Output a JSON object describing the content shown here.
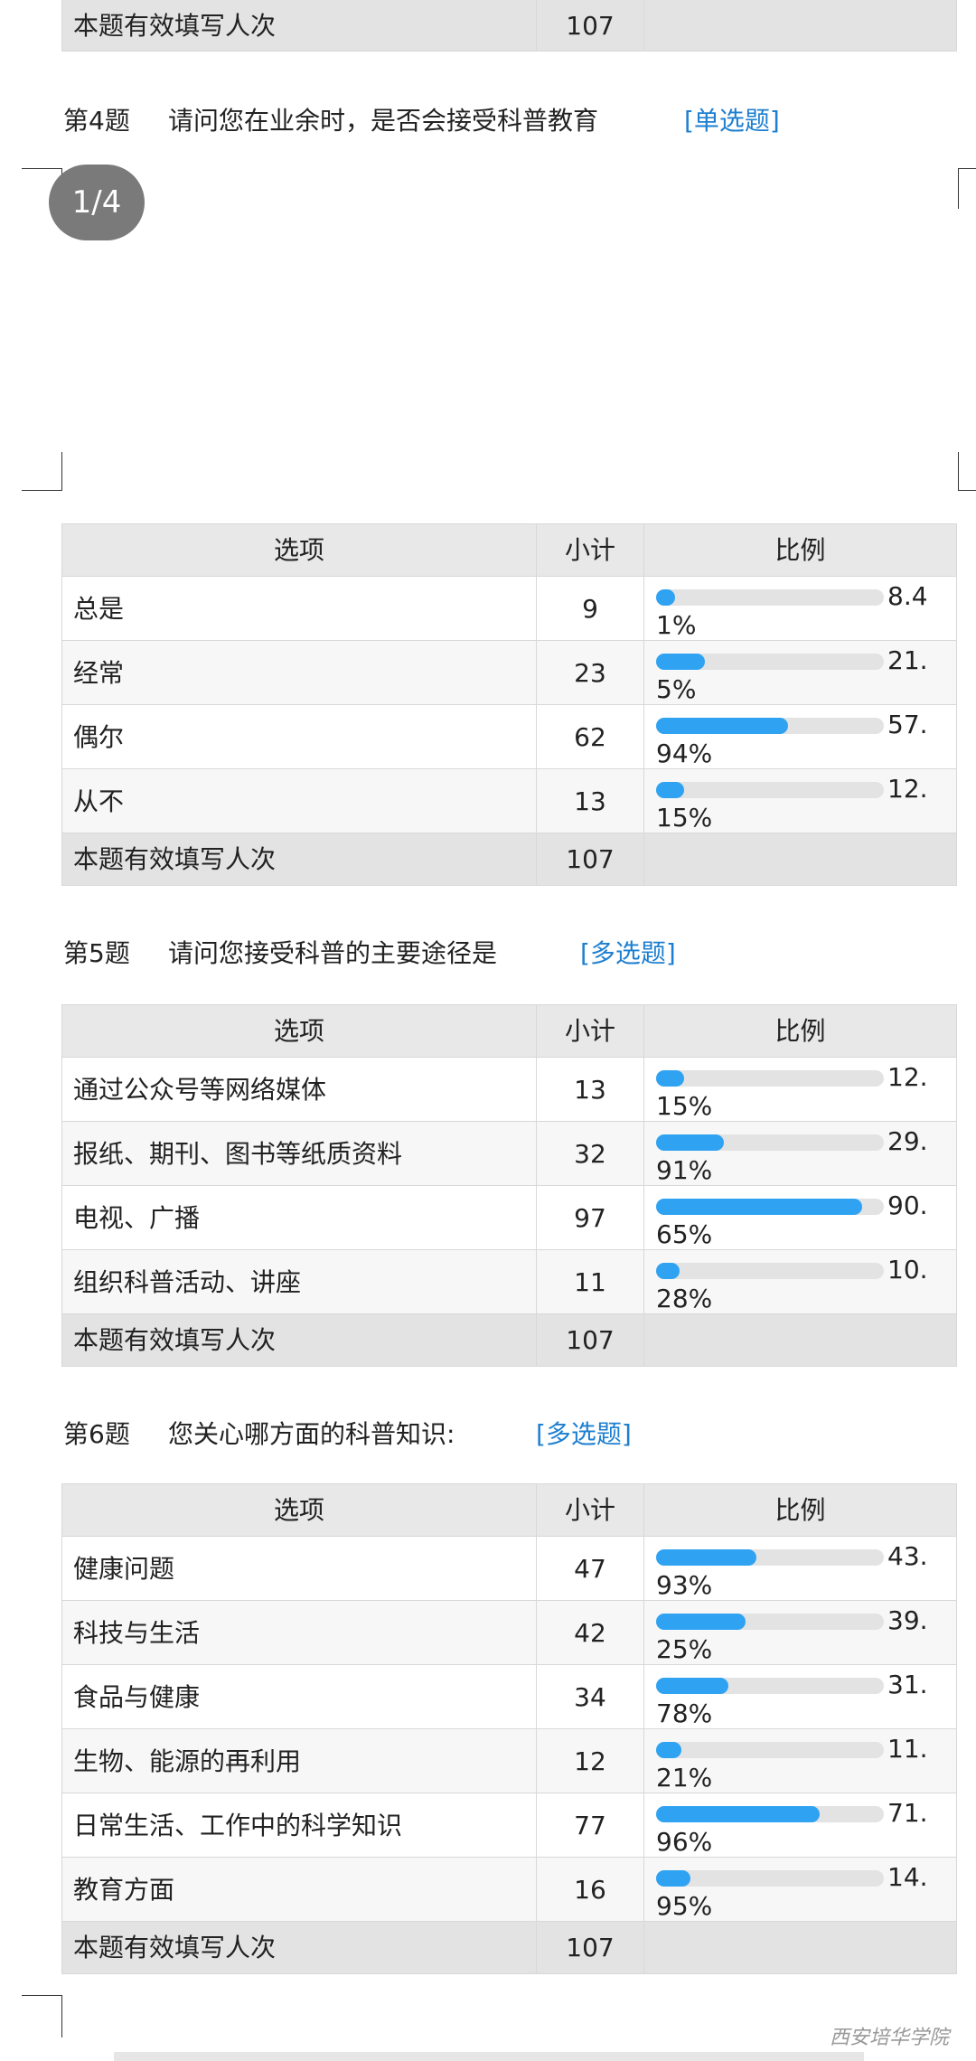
{
  "top_row": {
    "label": "本题有效填写人次",
    "count": 107
  },
  "page_indicator": "1/4",
  "questions": [
    {
      "number": "第4题",
      "text": "请问您在业余时，是否会接受科普教育",
      "tag": "[单选题]",
      "header": [
        "选项",
        "小计",
        "比例"
      ],
      "rows": [
        {
          "option": "总是",
          "count": 9,
          "percent": {
            "value": 8.41,
            "label": "8.41%"
          }
        },
        {
          "option": "经常",
          "count": 23,
          "percent": {
            "value": 21.5,
            "label": "21.5%"
          }
        },
        {
          "option": "偶尔",
          "count": 62,
          "percent": {
            "value": 57.94,
            "label": "57.94%"
          }
        },
        {
          "option": "从不",
          "count": 13,
          "percent": {
            "value": 12.15,
            "label": "12.15%"
          }
        }
      ],
      "total_label": "本题有效填写人次",
      "total": 107
    },
    {
      "number": "第5题",
      "text": "请问您接受科普的主要途径是",
      "tag": "[多选题]",
      "header": [
        "选项",
        "小计",
        "比例"
      ],
      "rows": [
        {
          "option": "通过公众号等网络媒体",
          "count": 13,
          "percent": {
            "value": 12.15,
            "label": "12.15%"
          }
        },
        {
          "option": "报纸、期刊、图书等纸质资料",
          "count": 32,
          "percent": {
            "value": 29.91,
            "label": "29.91%"
          }
        },
        {
          "option": "电视、广播",
          "count": 97,
          "percent": {
            "value": 90.65,
            "label": "90.65%"
          }
        },
        {
          "option": "组织科普活动、讲座",
          "count": 11,
          "percent": {
            "value": 10.28,
            "label": "10.28%"
          }
        }
      ],
      "total_label": "本题有效填写人次",
      "total": 107
    },
    {
      "number": "第6题",
      "text": "您关心哪方面的科普知识:",
      "tag": "[多选题]",
      "header": [
        "选项",
        "小计",
        "比例"
      ],
      "rows": [
        {
          "option": "健康问题",
          "count": 47,
          "percent": {
            "value": 43.93,
            "label": "43.93%"
          }
        },
        {
          "option": "科技与生活",
          "count": 42,
          "percent": {
            "value": 39.25,
            "label": "39.25%"
          }
        },
        {
          "option": "食品与健康",
          "count": 34,
          "percent": {
            "value": 31.78,
            "label": "31.78%"
          }
        },
        {
          "option": "生物、能源的再利用",
          "count": 12,
          "percent": {
            "value": 11.21,
            "label": "11.21%"
          }
        },
        {
          "option": "日常生活、工作中的科学知识",
          "count": 77,
          "percent": {
            "value": 71.96,
            "label": "71.96%"
          }
        },
        {
          "option": "教育方面",
          "count": 16,
          "percent": {
            "value": 14.95,
            "label": "14.95%"
          }
        }
      ],
      "total_label": "本题有效填写人次",
      "total": 107
    }
  ],
  "watermark": "西安培华学院"
}
